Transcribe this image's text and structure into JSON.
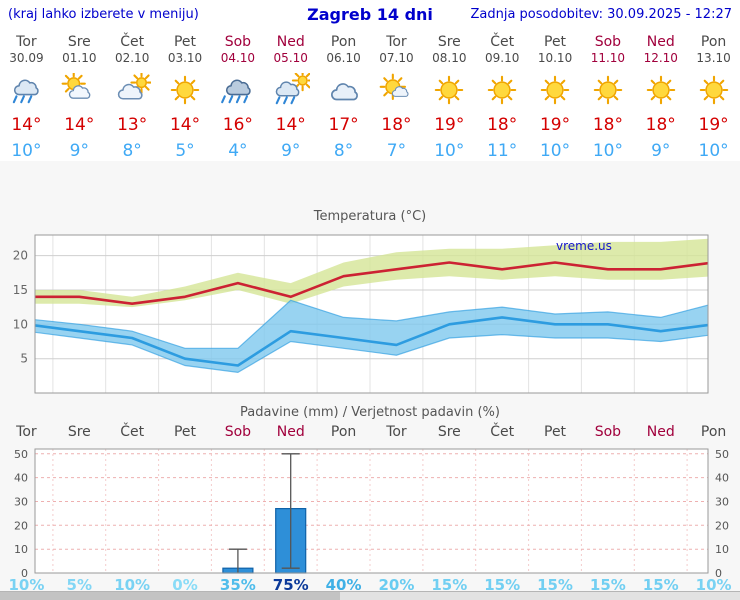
{
  "header": {
    "left_note": "(kraj lahko izberete v meniju)",
    "title": "Zagreb 14 dni",
    "updated": "Zadnja posodobitev: 30.09.2025 - 12:27"
  },
  "colors": {
    "link_blue": "#0000cc",
    "weekday_text": "#4a4a4a",
    "weekend_text": "#a1003c",
    "temp_max_text": "#d40000",
    "temp_min_text": "#3fa9f5",
    "line_max": "#cc2233",
    "band_max": "#d5e596",
    "line_min": "#2d9ce0",
    "band_min": "#7ec8ee",
    "bar_fill": "#2e8fd8",
    "bar_border": "#1062a8",
    "chart_title": "#555555",
    "watermark_blue": "#1414cc"
  },
  "days": [
    {
      "name": "Tor",
      "date": "30.09",
      "weekend": false,
      "icon": "rain",
      "tmax": "14°",
      "tmin": "10°"
    },
    {
      "name": "Sre",
      "date": "01.10",
      "weekend": false,
      "icon": "partly-cloudy",
      "tmax": "14°",
      "tmin": "9°"
    },
    {
      "name": "Čet",
      "date": "02.10",
      "weekend": false,
      "icon": "mostly-cloudy",
      "tmax": "13°",
      "tmin": "8°"
    },
    {
      "name": "Pet",
      "date": "03.10",
      "weekend": false,
      "icon": "sunny",
      "tmax": "14°",
      "tmin": "5°"
    },
    {
      "name": "Sob",
      "date": "04.10",
      "weekend": true,
      "icon": "heavy-rain",
      "tmax": "16°",
      "tmin": "4°"
    },
    {
      "name": "Ned",
      "date": "05.10",
      "weekend": true,
      "icon": "sun-showers",
      "tmax": "14°",
      "tmin": "9°"
    },
    {
      "name": "Pon",
      "date": "06.10",
      "weekend": false,
      "icon": "cloudy",
      "tmax": "17°",
      "tmin": "8°"
    },
    {
      "name": "Tor",
      "date": "07.10",
      "weekend": false,
      "icon": "mostly-sunny",
      "tmax": "18°",
      "tmin": "7°"
    },
    {
      "name": "Sre",
      "date": "08.10",
      "weekend": false,
      "icon": "sunny",
      "tmax": "19°",
      "tmin": "10°"
    },
    {
      "name": "Čet",
      "date": "09.10",
      "weekend": false,
      "icon": "sunny",
      "tmax": "18°",
      "tmin": "11°"
    },
    {
      "name": "Pet",
      "date": "10.10",
      "weekend": false,
      "icon": "sunny",
      "tmax": "19°",
      "tmin": "10°"
    },
    {
      "name": "Sob",
      "date": "11.10",
      "weekend": true,
      "icon": "sunny",
      "tmax": "18°",
      "tmin": "10°"
    },
    {
      "name": "Ned",
      "date": "12.10",
      "weekend": true,
      "icon": "sunny",
      "tmax": "18°",
      "tmin": "9°"
    },
    {
      "name": "Pon",
      "date": "13.10",
      "weekend": false,
      "icon": "sunny",
      "tmax": "19°",
      "tmin": "10°"
    }
  ],
  "chart_data": [
    {
      "type": "line",
      "title": "Temperatura (°C)",
      "watermark": "vreme.us",
      "categories": [
        "Tor 30.09",
        "Sre 01.10",
        "Čet 02.10",
        "Pet 03.10",
        "Sob 04.10",
        "Ned 05.10",
        "Pon 06.10",
        "Tor 07.10",
        "Sre 08.10",
        "Čet 09.10",
        "Pet 10.10",
        "Sob 11.10",
        "Ned 12.10",
        "Pon 13.10"
      ],
      "ylim": [
        0,
        23
      ],
      "yticks": [
        5,
        10,
        15,
        20
      ],
      "grid": true,
      "series": [
        {
          "name": "max",
          "color": "#cc2233",
          "band_color": "#d5e596",
          "values": [
            14,
            14,
            13,
            14,
            16,
            14,
            17,
            18,
            19,
            18,
            19,
            18,
            18,
            19
          ],
          "band_high": [
            15,
            15,
            14,
            15.5,
            17.5,
            16,
            19,
            20.5,
            21,
            21,
            21.5,
            22,
            22,
            22.5
          ],
          "band_low": [
            13,
            13,
            12.5,
            13.5,
            15,
            13,
            15.5,
            16.5,
            17,
            16.5,
            17,
            16.5,
            16.5,
            17
          ]
        },
        {
          "name": "min",
          "color": "#2d9ce0",
          "band_color": "#7ec8ee",
          "values": [
            10,
            9,
            8,
            5,
            4,
            9,
            8,
            7,
            10,
            11,
            10,
            10,
            9,
            10
          ],
          "band_high": [
            10.8,
            10,
            9,
            6.5,
            6.5,
            13.5,
            11,
            10.5,
            11.8,
            12.5,
            11.5,
            11.8,
            11,
            13
          ],
          "band_low": [
            9,
            8,
            7,
            4,
            3,
            7.5,
            6.5,
            5.5,
            8,
            8.5,
            8,
            8,
            7.5,
            8.5
          ]
        }
      ]
    },
    {
      "type": "bar",
      "title": "Padavine (mm) / Verjetnost padavin (%)",
      "categories": [
        "Tor",
        "Sre",
        "Čet",
        "Pet",
        "Sob",
        "Ned",
        "Pon",
        "Tor",
        "Sre",
        "Čet",
        "Pet",
        "Sob",
        "Ned",
        "Pon"
      ],
      "values": [
        0,
        0,
        0,
        0,
        2,
        27,
        0,
        0,
        0,
        0,
        0,
        0,
        0,
        0
      ],
      "whisker_low": [
        null,
        null,
        null,
        null,
        0,
        2,
        null,
        null,
        null,
        null,
        null,
        null,
        null,
        null
      ],
      "whisker_high": [
        null,
        null,
        null,
        null,
        10,
        50,
        null,
        null,
        null,
        null,
        null,
        null,
        null,
        null
      ],
      "bar_color": "#2e8fd8",
      "bar_border": "#1062a8",
      "ylim": [
        0,
        52
      ],
      "yticks": [
        0,
        10,
        20,
        30,
        40,
        50
      ],
      "probabilities": [
        {
          "text": "10%",
          "color": "#79d2f3",
          "bold": false
        },
        {
          "text": "5%",
          "color": "#82d6f5",
          "bold": false
        },
        {
          "text": "10%",
          "color": "#79d2f3",
          "bold": false
        },
        {
          "text": "0%",
          "color": "#8adcf7",
          "bold": false
        },
        {
          "text": "35%",
          "color": "#50bdeb",
          "bold": false
        },
        {
          "text": "75%",
          "color": "#0c3a9a",
          "bold": true
        },
        {
          "text": "40%",
          "color": "#3fb0e6",
          "bold": false
        },
        {
          "text": "20%",
          "color": "#68ccf1",
          "bold": false
        },
        {
          "text": "15%",
          "color": "#72cff2",
          "bold": false
        },
        {
          "text": "15%",
          "color": "#72cff2",
          "bold": false
        },
        {
          "text": "15%",
          "color": "#72cff2",
          "bold": false
        },
        {
          "text": "15%",
          "color": "#72cff2",
          "bold": false
        },
        {
          "text": "15%",
          "color": "#72cff2",
          "bold": false
        },
        {
          "text": "10%",
          "color": "#79d2f3",
          "bold": false
        }
      ]
    }
  ]
}
